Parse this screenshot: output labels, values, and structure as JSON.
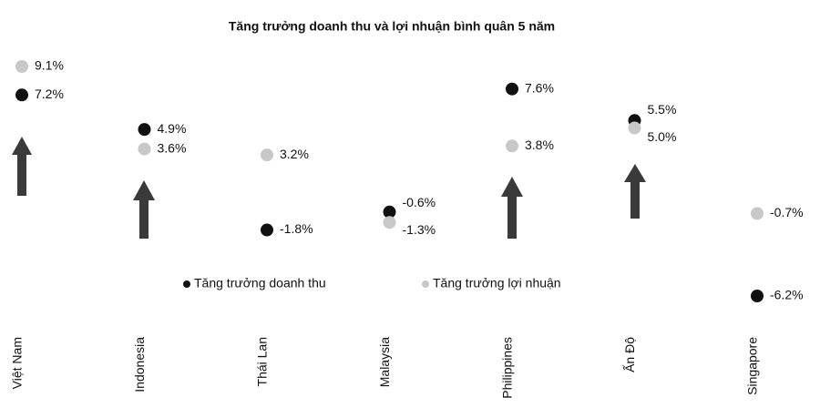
{
  "chart_data": {
    "type": "dot",
    "title": "Tăng trưởng doanh thu và lợi nhuận bình quân 5 năm",
    "categories": [
      "Việt Nam",
      "Indonesia",
      "Thái Lan",
      "Malaysia",
      "Philippines",
      "Ấn Độ",
      "Singapore"
    ],
    "series": [
      {
        "name": "Tăng trưởng doanh thu",
        "color": "#111111",
        "values": [
          7.2,
          4.9,
          -1.8,
          -0.6,
          7.6,
          5.5,
          -6.2
        ],
        "value_labels": [
          "7.2%",
          "4.9%",
          "-1.8%",
          "-0.6%",
          "7.6%",
          "5.5%",
          "-6.2%"
        ]
      },
      {
        "name": "Tăng trưởng lợi nhuận",
        "color": "#c8c8c8",
        "values": [
          9.1,
          3.6,
          3.2,
          -1.3,
          3.8,
          5.0,
          -0.7
        ],
        "value_labels": [
          "9.1%",
          "3.6%",
          "3.2%",
          "-1.3%",
          "3.8%",
          "5.0%",
          "-0.7%"
        ]
      }
    ]
  }
}
